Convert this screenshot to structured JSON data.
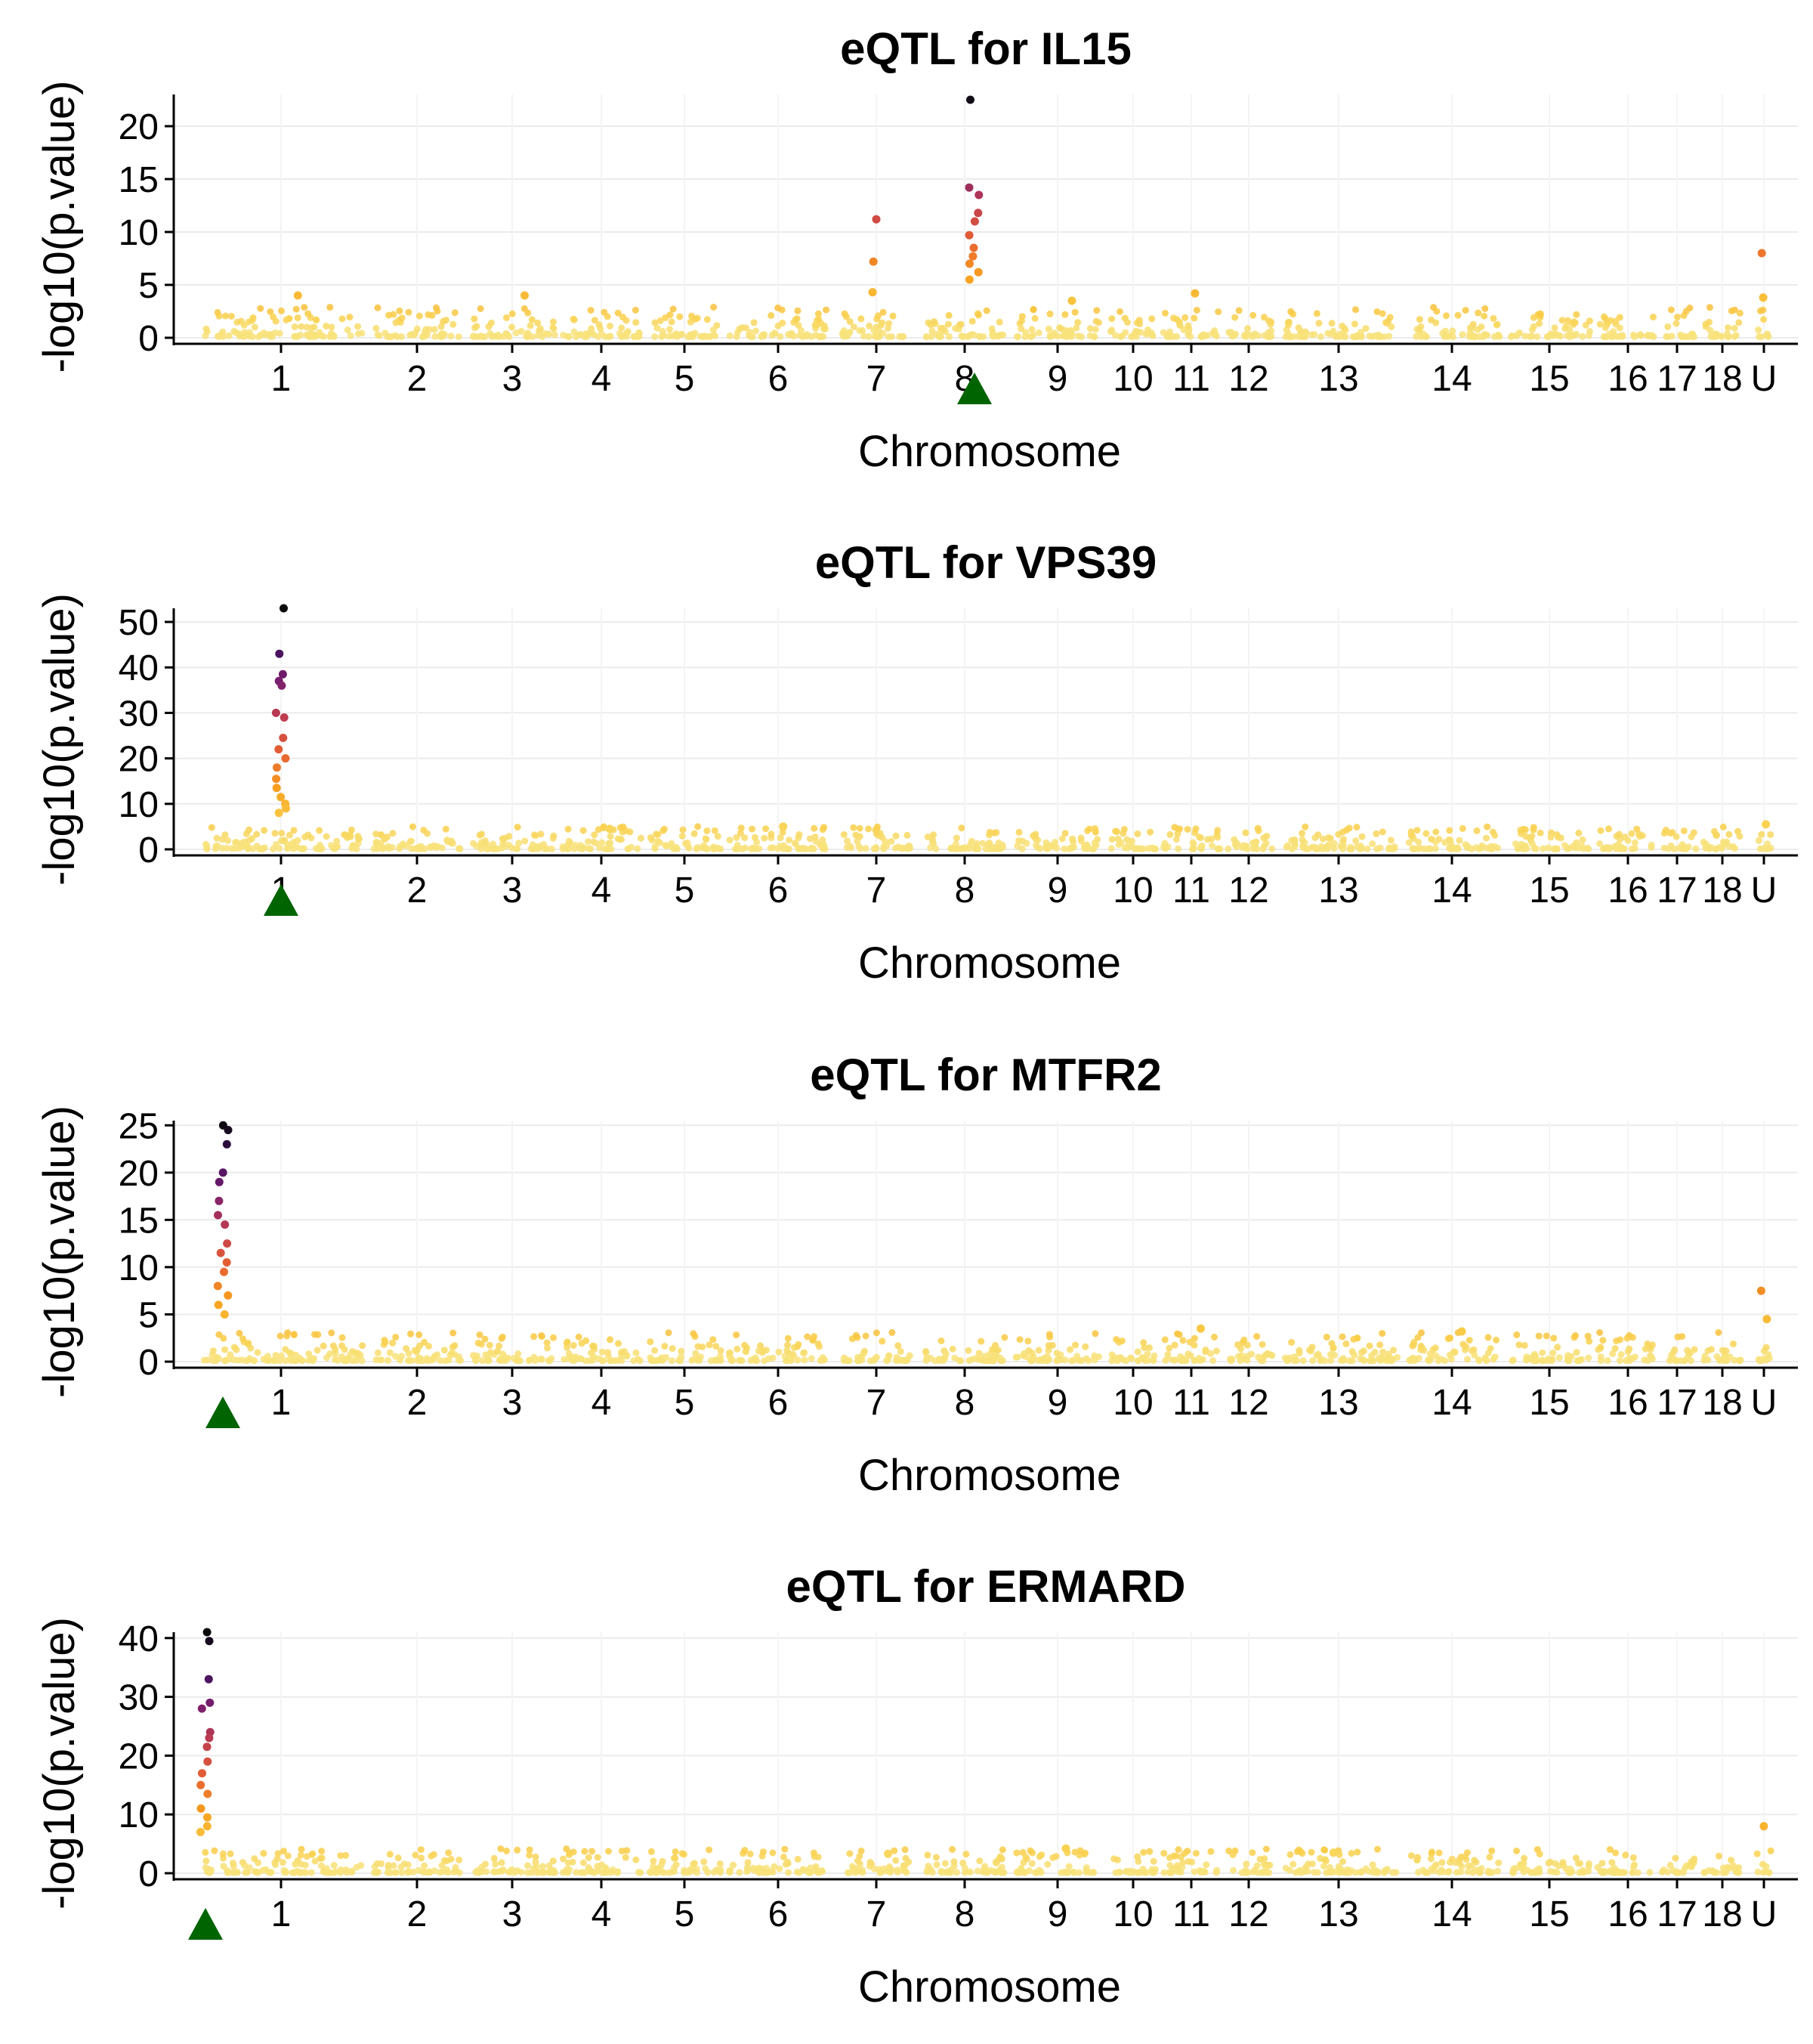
{
  "chart_data": [
    {
      "type": "scatter",
      "title": "eQTL for IL15",
      "xlabel": "Chromosome",
      "ylabel": "-log10(p.value)",
      "ylim": [
        0,
        23
      ],
      "yticks": [
        0,
        5,
        10,
        15,
        20
      ],
      "x_categories": [
        "1",
        "2",
        "3",
        "4",
        "5",
        "6",
        "7",
        "8",
        "9",
        "10",
        "11",
        "12",
        "13",
        "14",
        "15",
        "16",
        "17",
        "18",
        "U"
      ],
      "grid": true,
      "gene_marker_chromosome": "8",
      "points": [
        {
          "chr": "8",
          "y": 22.5
        },
        {
          "chr": "8",
          "y": 14.2
        },
        {
          "chr": "8",
          "y": 13.5
        },
        {
          "chr": "8",
          "y": 11.8
        },
        {
          "chr": "8",
          "y": 11.0
        },
        {
          "chr": "8",
          "y": 9.7
        },
        {
          "chr": "8",
          "y": 8.5
        },
        {
          "chr": "8",
          "y": 7.7
        },
        {
          "chr": "8",
          "y": 7.0
        },
        {
          "chr": "8",
          "y": 6.2
        },
        {
          "chr": "8",
          "y": 5.5
        },
        {
          "chr": "7",
          "y": 11.2
        },
        {
          "chr": "7",
          "y": 7.2
        },
        {
          "chr": "7",
          "y": 4.3
        },
        {
          "chr": "U",
          "y": 8.0
        },
        {
          "chr": "U",
          "y": 3.8
        },
        {
          "chr": "1",
          "y": 4.0
        },
        {
          "chr": "3",
          "y": 4.0
        },
        {
          "chr": "11",
          "y": 4.2
        },
        {
          "chr": "9",
          "y": 3.5
        }
      ]
    },
    {
      "type": "scatter",
      "title": "eQTL for VPS39",
      "xlabel": "Chromosome",
      "ylabel": "-log10(p.value)",
      "ylim": [
        0,
        53
      ],
      "yticks": [
        0,
        10,
        20,
        30,
        40,
        50
      ],
      "x_categories": [
        "1",
        "2",
        "3",
        "4",
        "5",
        "6",
        "7",
        "8",
        "9",
        "10",
        "11",
        "12",
        "13",
        "14",
        "15",
        "16",
        "17",
        "18",
        "U"
      ],
      "grid": true,
      "gene_marker_chromosome": "1",
      "points": [
        {
          "chr": "1",
          "y": 53.0
        },
        {
          "chr": "1",
          "y": 43.0
        },
        {
          "chr": "1",
          "y": 38.5
        },
        {
          "chr": "1",
          "y": 37.0
        },
        {
          "chr": "1",
          "y": 36.0
        },
        {
          "chr": "1",
          "y": 30.0
        },
        {
          "chr": "1",
          "y": 29.0
        },
        {
          "chr": "1",
          "y": 24.5
        },
        {
          "chr": "1",
          "y": 22.0
        },
        {
          "chr": "1",
          "y": 20.0
        },
        {
          "chr": "1",
          "y": 18.0
        },
        {
          "chr": "1",
          "y": 15.5
        },
        {
          "chr": "1",
          "y": 13.5
        },
        {
          "chr": "1",
          "y": 11.5
        },
        {
          "chr": "1",
          "y": 10.0
        },
        {
          "chr": "1",
          "y": 9.0
        },
        {
          "chr": "1",
          "y": 8.0
        },
        {
          "chr": "U",
          "y": 5.5
        },
        {
          "chr": "6",
          "y": 5.0
        },
        {
          "chr": "4",
          "y": 4.5
        }
      ]
    },
    {
      "type": "scatter",
      "title": "eQTL for MTFR2",
      "xlabel": "Chromosome",
      "ylabel": "-log10(p.value)",
      "ylim": [
        0,
        25.5
      ],
      "yticks": [
        0,
        5,
        10,
        15,
        20,
        25
      ],
      "x_categories": [
        "1",
        "2",
        "3",
        "4",
        "5",
        "6",
        "7",
        "8",
        "9",
        "10",
        "11",
        "12",
        "13",
        "14",
        "15",
        "16",
        "17",
        "18",
        "U"
      ],
      "grid": true,
      "gene_marker_chromosome": "1",
      "points": [
        {
          "chr": "1",
          "y": 25.0
        },
        {
          "chr": "1",
          "y": 24.5
        },
        {
          "chr": "1",
          "y": 23.0
        },
        {
          "chr": "1",
          "y": 20.0
        },
        {
          "chr": "1",
          "y": 19.0
        },
        {
          "chr": "1",
          "y": 17.0
        },
        {
          "chr": "1",
          "y": 15.5
        },
        {
          "chr": "1",
          "y": 14.5
        },
        {
          "chr": "1",
          "y": 12.5
        },
        {
          "chr": "1",
          "y": 11.5
        },
        {
          "chr": "1",
          "y": 10.5
        },
        {
          "chr": "1",
          "y": 9.5
        },
        {
          "chr": "1",
          "y": 8.0
        },
        {
          "chr": "1",
          "y": 7.0
        },
        {
          "chr": "1",
          "y": 6.0
        },
        {
          "chr": "1",
          "y": 5.0
        },
        {
          "chr": "U",
          "y": 7.5
        },
        {
          "chr": "U",
          "y": 4.5
        },
        {
          "chr": "11",
          "y": 3.5
        },
        {
          "chr": "14",
          "y": 3.2
        }
      ]
    },
    {
      "type": "scatter",
      "title": "eQTL for ERMARD",
      "xlabel": "Chromosome",
      "ylabel": "-log10(p.value)",
      "ylim": [
        0,
        41
      ],
      "yticks": [
        0,
        10,
        20,
        30,
        40
      ],
      "x_categories": [
        "1",
        "2",
        "3",
        "4",
        "5",
        "6",
        "7",
        "8",
        "9",
        "10",
        "11",
        "12",
        "13",
        "14",
        "15",
        "16",
        "17",
        "18",
        "U"
      ],
      "grid": true,
      "gene_marker_chromosome": "1",
      "points": [
        {
          "chr": "1",
          "y": 41.0
        },
        {
          "chr": "1",
          "y": 39.5
        },
        {
          "chr": "1",
          "y": 33.0
        },
        {
          "chr": "1",
          "y": 29.0
        },
        {
          "chr": "1",
          "y": 28.0
        },
        {
          "chr": "1",
          "y": 24.0
        },
        {
          "chr": "1",
          "y": 23.0
        },
        {
          "chr": "1",
          "y": 21.5
        },
        {
          "chr": "1",
          "y": 19.0
        },
        {
          "chr": "1",
          "y": 17.0
        },
        {
          "chr": "1",
          "y": 15.0
        },
        {
          "chr": "1",
          "y": 13.5
        },
        {
          "chr": "1",
          "y": 11.0
        },
        {
          "chr": "1",
          "y": 9.5
        },
        {
          "chr": "1",
          "y": 8.0
        },
        {
          "chr": "1",
          "y": 7.0
        },
        {
          "chr": "U",
          "y": 8.0
        },
        {
          "chr": "9",
          "y": 4.2
        },
        {
          "chr": "13",
          "y": 3.5
        },
        {
          "chr": "7",
          "y": 3.3
        }
      ]
    }
  ],
  "colors": {
    "gene_marker": "#006400",
    "low_significance": "#f7e48a",
    "high_significance": "#000004"
  }
}
